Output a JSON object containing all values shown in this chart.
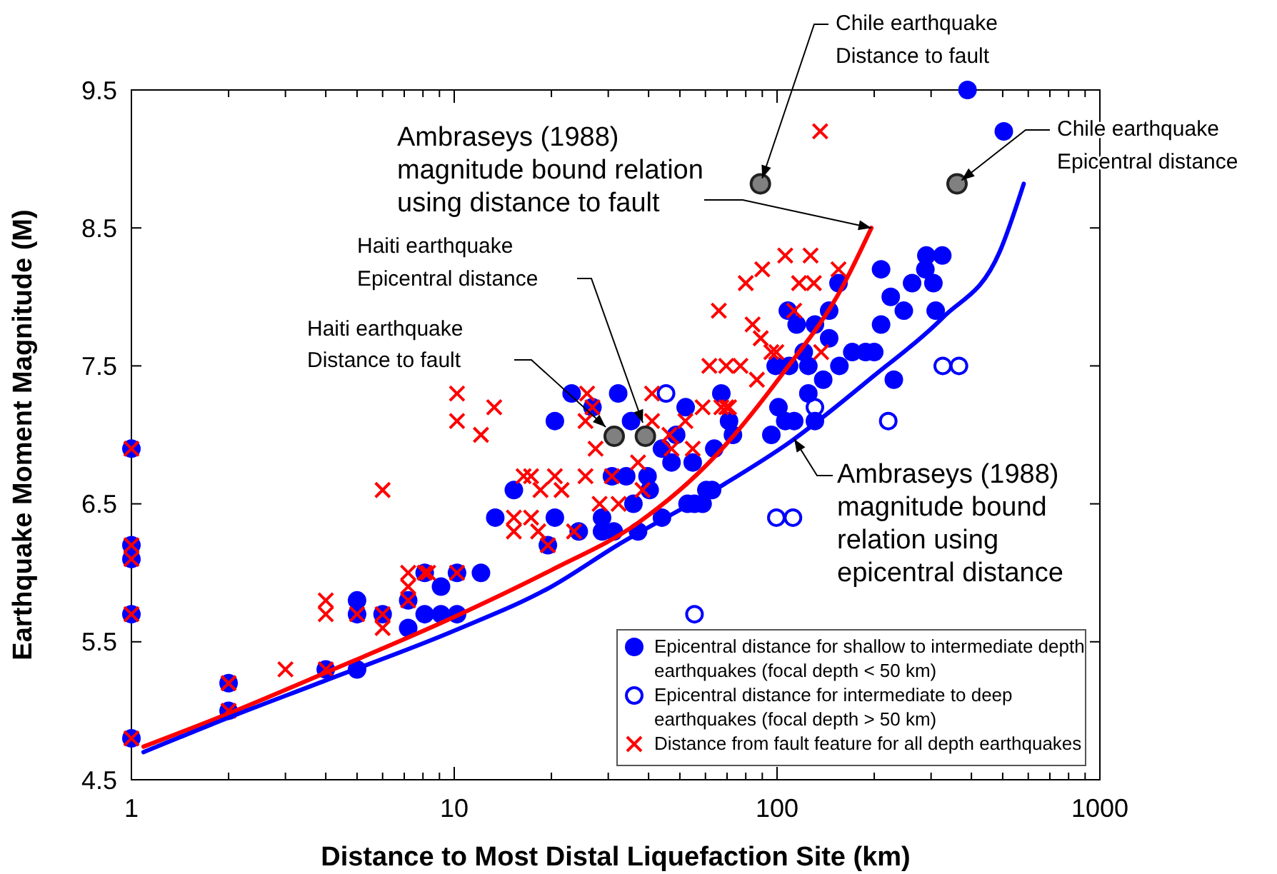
{
  "chart_data": {
    "type": "scatter",
    "xlabel": "Distance to Most Distal Liquefaction Site (km)",
    "ylabel": "Earthquake Moment Magnitude (M)",
    "log": "x",
    "xlim": [
      1,
      1000
    ],
    "ylim": [
      4.5,
      9.5
    ],
    "xticks": [
      1,
      {
        "value": 2,
        "label": null
      },
      {
        "value": 3,
        "label": null
      },
      {
        "value": 4,
        "label": null
      },
      {
        "value": 5,
        "label": null
      },
      {
        "value": 6,
        "label": null
      },
      {
        "value": 7,
        "label": null
      },
      {
        "value": 8,
        "label": null
      },
      {
        "value": 9,
        "label": null
      },
      10,
      {
        "value": 20,
        "label": null
      },
      {
        "value": 30,
        "label": null
      },
      {
        "value": 40,
        "label": null
      },
      {
        "value": 50,
        "label": null
      },
      {
        "value": 60,
        "label": null
      },
      {
        "value": 70,
        "label": null
      },
      {
        "value": 80,
        "label": null
      },
      {
        "value": 90,
        "label": null
      },
      100,
      {
        "value": 200,
        "label": null
      },
      {
        "value": 300,
        "label": null
      },
      {
        "value": 400,
        "label": null
      },
      {
        "value": 500,
        "label": null
      },
      {
        "value": 600,
        "label": null
      },
      {
        "value": 700,
        "label": null
      },
      {
        "value": 800,
        "label": null
      },
      {
        "value": 900,
        "label": null
      },
      1000
    ],
    "yticks": [
      4.5,
      5.5,
      6.5,
      7.5,
      8.5,
      9.5
    ],
    "legend": "bottom right",
    "series": [
      {
        "name": "Epicentral distance for shallow to intermediate depth earthquakes (focal depth < 50 km)",
        "color": "#0000ff",
        "marker": "circle",
        "x": [
          1,
          1,
          1,
          1,
          1,
          2,
          2,
          4,
          5,
          5,
          5,
          6,
          7.2,
          7.2,
          8.1,
          8.1,
          9.1,
          9.1,
          10.2,
          10.2,
          12.1,
          13.4,
          15.3,
          19.5,
          20.5,
          20.5,
          23.1,
          24.3,
          26.8,
          28.7,
          28.7,
          30.8,
          31.2,
          32.2,
          34.1,
          35.3,
          35.9,
          37.1,
          39.7,
          40.3,
          44,
          44,
          47.1,
          48.7,
          52.1,
          52.8,
          54.8,
          55.5,
          58.8,
          60.4,
          62.9,
          63.9,
          67.2,
          71,
          73,
          96,
          99,
          101,
          106,
          108,
          109,
          113,
          115,
          121,
          125,
          125,
          131,
          131,
          139,
          145,
          145,
          155,
          156,
          171,
          188,
          200,
          210,
          210,
          225,
          230,
          247,
          262,
          288,
          290,
          305,
          310,
          325,
          389,
          504
        ],
        "values": [
          6.9,
          6.2,
          6.1,
          5.7,
          4.8,
          5.2,
          5.0,
          5.3,
          5.8,
          5.7,
          5.3,
          5.7,
          5.8,
          5.6,
          6.0,
          5.7,
          5.9,
          5.7,
          6.0,
          5.7,
          6.0,
          6.4,
          6.6,
          6.2,
          7.1,
          6.4,
          7.3,
          6.3,
          7.2,
          6.3,
          6.4,
          6.7,
          6.3,
          7.3,
          6.7,
          7.1,
          6.5,
          6.3,
          6.7,
          6.6,
          6.9,
          6.4,
          6.8,
          7.0,
          7.2,
          6.5,
          6.8,
          6.5,
          6.5,
          6.6,
          6.6,
          6.9,
          7.3,
          7.1,
          7.0,
          7.0,
          7.5,
          7.2,
          7.1,
          7.9,
          7.5,
          7.1,
          7.8,
          7.6,
          7.5,
          7.3,
          7.8,
          7.1,
          7.4,
          7.9,
          7.7,
          8.1,
          7.5,
          7.6,
          7.6,
          7.6,
          8.2,
          7.8,
          8.0,
          7.4,
          7.9,
          8.1,
          8.2,
          8.3,
          8.1,
          7.9,
          8.3,
          9.5,
          9.2
        ]
      },
      {
        "name": "Epicentral distance for intermediate to deep earthquakes (focal depth > 50 km)",
        "color": "#0000ff",
        "marker": "circle-open",
        "x": [
          45.3,
          55.5,
          99.5,
          112,
          131,
          221,
          326,
          366
        ],
        "values": [
          7.3,
          5.7,
          6.4,
          6.4,
          7.2,
          7.1,
          7.5,
          7.5
        ]
      },
      {
        "name": "Distance from fault feature for all depth earthquakes",
        "color": "#ff0000",
        "marker": "cross",
        "x": [
          1,
          1,
          1,
          1,
          1,
          2,
          2,
          3,
          4,
          4,
          4,
          5,
          6,
          6,
          6,
          7.2,
          7.2,
          7.2,
          8.1,
          8.3,
          10.2,
          10.2,
          10.2,
          12.1,
          13.3,
          15.3,
          15.3,
          16.4,
          17.3,
          17.3,
          18.2,
          18.5,
          19.5,
          20.5,
          21.5,
          23.5,
          25.5,
          25.5,
          25.8,
          26.8,
          27.4,
          28.2,
          30.8,
          32.3,
          37.1,
          38.3,
          41,
          41,
          46.4,
          47.1,
          52,
          54.8,
          58.8,
          61.7,
          66,
          67.2,
          69.6,
          69.6,
          71,
          77,
          80,
          84,
          86.6,
          89,
          90,
          96,
          99.5,
          106,
          113,
          117,
          127,
          130,
          136,
          137,
          155
        ],
        "values": [
          6.9,
          6.2,
          6.1,
          5.7,
          4.8,
          5.2,
          5.0,
          5.3,
          5.8,
          5.7,
          5.3,
          5.7,
          5.7,
          5.6,
          6.6,
          6.0,
          5.9,
          5.8,
          6.0,
          6.0,
          6.0,
          7.3,
          7.1,
          7.0,
          7.2,
          6.4,
          6.3,
          6.7,
          6.7,
          6.4,
          6.3,
          6.6,
          6.2,
          6.7,
          6.6,
          6.3,
          6.7,
          7.1,
          7.3,
          7.2,
          6.9,
          6.5,
          6.7,
          6.5,
          6.8,
          6.6,
          7.3,
          7.1,
          7.0,
          6.9,
          7.1,
          6.9,
          7.2,
          7.5,
          7.9,
          7.2,
          7.5,
          7.2,
          7.2,
          7.5,
          8.1,
          7.8,
          7.4,
          7.7,
          8.2,
          7.6,
          7.6,
          8.3,
          7.9,
          8.1,
          8.3,
          8.1,
          9.2,
          7.6,
          8.2
        ]
      },
      {
        "type": "line",
        "color": "#ff0000",
        "x": [
          1.09,
          2,
          3.94,
          10,
          20,
          37,
          64,
          103,
          160,
          196
        ],
        "values": [
          4.74,
          4.98,
          5.27,
          5.68,
          6.02,
          6.36,
          6.84,
          7.43,
          8.08,
          8.5
        ]
      },
      {
        "type": "line",
        "color": "#0000ff",
        "x": [
          1.09,
          2,
          4,
          10,
          20,
          32,
          64,
          110,
          200,
          326,
          490,
          581
        ],
        "values": [
          4.7,
          4.95,
          5.22,
          5.58,
          5.9,
          6.2,
          6.6,
          6.95,
          7.43,
          7.85,
          8.33,
          8.82
        ]
      },
      {
        "color": "#808080",
        "marker": "circle",
        "x": [
          31.3,
          39.1,
          88.8,
          361
        ],
        "values": [
          6.99,
          6.99,
          8.82,
          8.82
        ]
      }
    ],
    "annotations": [
      {
        "text": "Chile earthquake\nDistance to fault",
        "x": 88.8,
        "y": 8.82
      },
      {
        "text": "Chile earthquake\nEpicentral distance",
        "x": 361,
        "y": 8.82
      },
      {
        "text": "Ambraseys (1988)\nmagnitude bound relation\nusing distance to fault",
        "x": 196,
        "y": 8.5
      },
      "Haiti earthquake\nEpicentral distance",
      "Haiti earthquake\nDistance to fault",
      {
        "text": "Ambraseys (1988)\nmagnitude bound\nrelation using\nepicentral distance",
        "x": 113,
        "y": 6.97
      }
    ]
  }
}
